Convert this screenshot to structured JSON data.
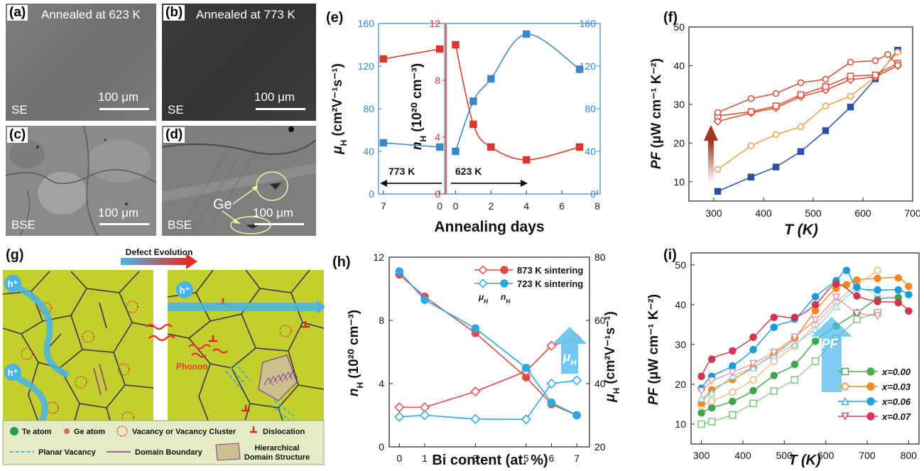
{
  "panels": {
    "a": {
      "label": "(a)",
      "title": "Annealed at 623 K",
      "scale": "100 μm",
      "mode": "SE"
    },
    "b": {
      "label": "(b)",
      "title": "Annealed at 773 K",
      "scale": "100 μm",
      "mode": "SE"
    },
    "c": {
      "label": "(c)",
      "scale": "100 μm",
      "mode": "BSE"
    },
    "d": {
      "label": "(d)",
      "scale": "100 μm",
      "mode": "BSE",
      "annotation": "Ge"
    },
    "e": {
      "label": "(e)"
    },
    "f": {
      "label": "(f)"
    },
    "g": {
      "label": "(g)"
    },
    "h": {
      "label": "(h)"
    },
    "i": {
      "label": "(i)"
    }
  },
  "chart_data": [
    {
      "id": "e",
      "type": "line",
      "xlabel": "Annealing days",
      "left_axis": {
        "label_main": "μ",
        "label_sub": "H",
        "label_unit": " (cm²V⁻¹s⁻¹)",
        "ylim": [
          0,
          160
        ],
        "ticks": [
          "0",
          "40",
          "80",
          "120",
          "160"
        ]
      },
      "middle_axis": {
        "label_main": "n",
        "label_sub": "H",
        "label_unit": " (10²⁰ cm⁻³)",
        "ylim": [
          0,
          12
        ],
        "ticks": [
          "0",
          "4",
          "8",
          "12"
        ]
      },
      "right_axis": {
        "ylim": [
          0,
          160
        ],
        "ticks": [
          "0",
          "40",
          "80",
          "120",
          "160"
        ]
      },
      "left_segment": {
        "x_ticks": [
          "7",
          "0"
        ],
        "annotation": "773 K",
        "series": [
          {
            "quantity": "nH",
            "color": "#d9382c",
            "x": [
              7,
              0
            ],
            "values": [
              9.5,
              10.2
            ]
          },
          {
            "quantity": "muH",
            "color": "#3d86c6",
            "x": [
              7,
              0
            ],
            "values": [
              48,
              44
            ]
          }
        ]
      },
      "right_segment": {
        "x_ticks": [
          "0",
          "2",
          "4",
          "6",
          "8"
        ],
        "xlim": [
          -0.3,
          8
        ],
        "annotation": "623 K",
        "series": [
          {
            "quantity": "nH",
            "color": "#d9382c",
            "x": [
              0,
              1,
              2,
              4,
              7
            ],
            "values": [
              10.5,
              4.9,
              3.3,
              2.4,
              3.3
            ]
          },
          {
            "quantity": "muH",
            "color": "#3d86c6",
            "x": [
              0,
              1,
              2,
              4,
              7
            ],
            "values": [
              40,
              87,
              108,
              150,
              117
            ]
          }
        ]
      }
    },
    {
      "id": "f",
      "type": "line",
      "xlabel": "T (K)",
      "ylabel_main": "PF",
      "ylabel_unit": "(μW cm⁻¹ K⁻²)",
      "xlim": [
        250,
        700
      ],
      "ylim": [
        5,
        50
      ],
      "x_ticks": [
        "300",
        "400",
        "500",
        "600",
        "700"
      ],
      "y_ticks": [
        "10",
        "20",
        "30",
        "40",
        "50"
      ],
      "series": [
        {
          "color": "#2f4fa6",
          "marker": "square-filled",
          "x": [
            308,
            375,
            425,
            475,
            525,
            575,
            625,
            670
          ],
          "values": [
            7.5,
            11.2,
            13.8,
            17.8,
            23.2,
            29.3,
            36.6,
            44
          ]
        },
        {
          "color": "#f0a04b",
          "marker": "circle-open",
          "x": [
            308,
            375,
            425,
            475,
            525,
            575,
            625,
            670
          ],
          "values": [
            13.2,
            19.3,
            22.2,
            24.2,
            29.6,
            32.1,
            37.1,
            43.5
          ]
        },
        {
          "color": "#e04a34",
          "marker": "diamond-open",
          "x": [
            308,
            375,
            425,
            475,
            525,
            575,
            625,
            670
          ],
          "values": [
            25.6,
            27.8,
            29.1,
            32.0,
            33.7,
            36.4,
            37.1,
            40.0
          ]
        },
        {
          "color": "#e04a34",
          "marker": "square-open",
          "x": [
            308,
            375,
            425,
            475,
            525,
            575,
            625,
            670
          ],
          "values": [
            27.0,
            28.1,
            29.6,
            32.5,
            34.6,
            37.3,
            37.6,
            40.6
          ]
        },
        {
          "color": "#e04a34",
          "marker": "circle-open",
          "x": [
            308,
            375,
            425,
            475,
            525,
            575,
            625,
            650,
            670
          ],
          "values": [
            27.9,
            31.5,
            32.8,
            35.6,
            36.5,
            40.9,
            41.3,
            42.9,
            40.1
          ]
        }
      ]
    },
    {
      "id": "h",
      "type": "line",
      "xlabel": "Bi content (at. %)",
      "left_axis": {
        "label_main": "n",
        "label_sub": "H",
        "label_unit": " (10²⁰ cm⁻³)",
        "ylim": [
          0,
          12
        ],
        "ticks": [
          "0",
          "4",
          "8",
          "12"
        ]
      },
      "right_axis": {
        "label_main": "μ",
        "label_sub": "H",
        "label_unit": " (cm²V⁻¹s⁻¹)",
        "ylim": [
          20,
          80
        ],
        "ticks": [
          "20",
          "40",
          "60",
          "80"
        ]
      },
      "x_ticks": [
        "0",
        "1",
        "3",
        "5",
        "6",
        "7"
      ],
      "legend": [
        {
          "text": "873 K sintering",
          "color": "#e04a4a"
        },
        {
          "text": "723 K sintering",
          "color": "#29a9e0"
        }
      ],
      "legend_sub1": "μ",
      "legend_sub1_sub": "H",
      "legend_sub2": "n",
      "legend_sub2_sub": "H",
      "annotation_main": "μ",
      "annotation_sub": "H",
      "series": [
        {
          "sintering": "873 K",
          "quantity": "nH",
          "color": "#e04a4a",
          "marker": "circle-filled",
          "x": [
            0,
            1,
            3,
            5,
            6,
            7
          ],
          "values": [
            10.9,
            9.5,
            7.2,
            4.4,
            2.7,
            2.0
          ]
        },
        {
          "sintering": "873 K",
          "quantity": "muH",
          "color": "#e04a4a",
          "marker": "diamond-open",
          "x": [
            0,
            1,
            3,
            5,
            6,
            7
          ],
          "values": [
            32.5,
            32.5,
            37.5,
            43.9,
            52.0,
            54.2
          ]
        },
        {
          "sintering": "723 K",
          "quantity": "nH",
          "color": "#29a9e0",
          "marker": "circle-filled",
          "x": [
            0,
            1,
            3,
            5,
            6,
            7
          ],
          "values": [
            11.1,
            9.3,
            7.5,
            5.0,
            2.8,
            2.0
          ]
        },
        {
          "sintering": "723 K",
          "quantity": "muH",
          "color": "#29a9e0",
          "marker": "diamond-open",
          "x": [
            0,
            1,
            3,
            5,
            6,
            7
          ],
          "values": [
            29.5,
            30.0,
            28.8,
            28.7,
            40.0,
            41.0
          ]
        }
      ]
    },
    {
      "id": "i",
      "type": "line",
      "xlabel": "T (K)",
      "ylabel_main": "PF",
      "ylabel_unit": "(μW cm⁻¹ K⁻²)",
      "xlim": [
        275,
        825
      ],
      "ylim": [
        5,
        53
      ],
      "x_ticks": [
        "300",
        "400",
        "500",
        "600",
        "700",
        "800"
      ],
      "y_ticks": [
        "10",
        "20",
        "30",
        "40",
        "50"
      ],
      "annotation": "PF",
      "legend": [
        {
          "text": "x=0.00",
          "color": "#4cae4f"
        },
        {
          "text": "x=0.03",
          "color": "#f08a24"
        },
        {
          "text": "x=0.06",
          "color": "#1ea3df"
        },
        {
          "text": "x=0.07",
          "color": "#d9385a"
        }
      ],
      "series": [
        {
          "x_value": "0.00",
          "sintering": "723 K",
          "color": "#7cc47c",
          "marker": "square-open",
          "x": [
            300,
            325,
            375,
            425,
            475,
            525,
            575,
            625,
            675,
            725
          ],
          "values": [
            10.0,
            10.6,
            12.3,
            15.2,
            18.3,
            21.1,
            25.8,
            31.5,
            36.3,
            38.0
          ]
        },
        {
          "x_value": "0.00",
          "sintering": "873 K",
          "color": "#3fa54a",
          "marker": "circle-filled",
          "x": [
            300,
            325,
            375,
            425,
            475,
            525,
            575,
            625,
            675,
            725,
            775
          ],
          "values": [
            12.8,
            14.1,
            15.7,
            18.4,
            22.2,
            25.0,
            30.8,
            34.6,
            38.0,
            41.3,
            41.8
          ]
        },
        {
          "x_value": "0.03",
          "sintering": "723 K",
          "color": "#f4b27a",
          "marker": "circle-open",
          "x": [
            300,
            325,
            375,
            425,
            475,
            525,
            575,
            625,
            675,
            725
          ],
          "values": [
            14.5,
            15.8,
            18.0,
            21.1,
            25.8,
            29.6,
            35.0,
            40.7,
            45.0,
            48.6
          ]
        },
        {
          "x_value": "0.03",
          "sintering": "873 K",
          "color": "#ef8a1e",
          "marker": "circle-filled",
          "x": [
            300,
            325,
            375,
            425,
            475,
            525,
            575,
            625,
            650,
            675,
            725,
            775,
            800
          ],
          "values": [
            15.2,
            18.6,
            21.2,
            24.2,
            27.6,
            31.6,
            38.5,
            44.1,
            45.0,
            46.2,
            46.6,
            46.7,
            44.6
          ]
        },
        {
          "x_value": "0.06",
          "sintering": "723 K",
          "color": "#7fd0ee",
          "marker": "triangle-open",
          "x": [
            300,
            325,
            375,
            425,
            475,
            525,
            575,
            625,
            675,
            725
          ],
          "values": [
            16.5,
            17.8,
            22.1,
            24.2,
            27.3,
            30.0,
            33.8,
            39.6,
            44.2,
            43.0
          ]
        },
        {
          "x_value": "0.06",
          "sintering": "873 K",
          "color": "#1a9bd6",
          "marker": "circle-filled",
          "x": [
            300,
            325,
            375,
            425,
            475,
            525,
            575,
            625,
            650,
            675,
            725,
            775,
            800
          ],
          "values": [
            19.0,
            22.0,
            24.6,
            28.7,
            34.3,
            36.4,
            42.0,
            46.0,
            48.6,
            44.4,
            43.7,
            43.7,
            42.5
          ]
        },
        {
          "x_value": "0.07",
          "sintering": "723 K",
          "color": "#e28aa8",
          "marker": "triangle-down-open",
          "x": [
            300,
            325,
            375,
            425,
            475,
            525,
            575,
            625,
            675,
            725
          ],
          "values": [
            18.3,
            20.9,
            23.0,
            25.2,
            28.0,
            31.8,
            36.1,
            41.8,
            37.8,
            37.2
          ]
        },
        {
          "x_value": "0.07",
          "sintering": "873 K",
          "color": "#d0344e",
          "marker": "circle-filled",
          "x": [
            300,
            325,
            375,
            425,
            475,
            525,
            575,
            625,
            675,
            725,
            775,
            800
          ],
          "values": [
            22.0,
            26.3,
            28.4,
            31.8,
            36.8,
            36.8,
            40.0,
            45.2,
            42.2,
            40.8,
            40.5,
            38.4
          ]
        }
      ]
    }
  ],
  "diagram_g": {
    "title": "Defect Evolution",
    "carrier": "h⁺",
    "phonon": "Phonon",
    "legend": [
      {
        "text": "Te atom",
        "icon": "green-dot-icon"
      },
      {
        "text": "Ge atom",
        "icon": "red-dot-icon"
      },
      {
        "text": "Vacancy or Vacancy Cluster",
        "icon": "dotted-circle-icon"
      },
      {
        "text": "Dislocation",
        "icon": "dislocation-icon"
      },
      {
        "text": "Planar Vacancy",
        "icon": "dashed-line-icon"
      },
      {
        "text": "Domain Boundary",
        "icon": "purple-line-icon"
      },
      {
        "text": "Hierarchical Domain Structure",
        "icon": "herringbone-icon",
        "text_line2": "Domain Structure",
        "text_line1": "Hierarchical"
      }
    ],
    "colors": {
      "grain": "#c2cf2e",
      "boundary": "#3b3551",
      "carrier": "#48b4e6",
      "phonon": "#e83b2d",
      "legend_bg": "#e3ecc6"
    }
  }
}
